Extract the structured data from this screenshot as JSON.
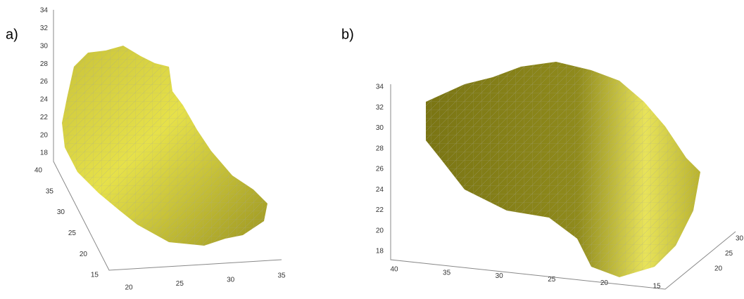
{
  "panels": [
    {
      "label": "a)",
      "zticks": [
        34,
        32,
        30,
        28,
        26,
        24,
        22,
        20,
        18
      ],
      "yticks": [
        40,
        35,
        30,
        25,
        20,
        15
      ],
      "xticks": [
        20,
        25,
        30,
        35
      ]
    },
    {
      "label": "b)",
      "zticks": [
        34,
        32,
        30,
        28,
        26,
        24,
        22,
        20,
        18
      ],
      "xticks": [
        40,
        35,
        30,
        25,
        20,
        15
      ],
      "yticks": [
        20,
        25,
        30
      ]
    }
  ]
}
